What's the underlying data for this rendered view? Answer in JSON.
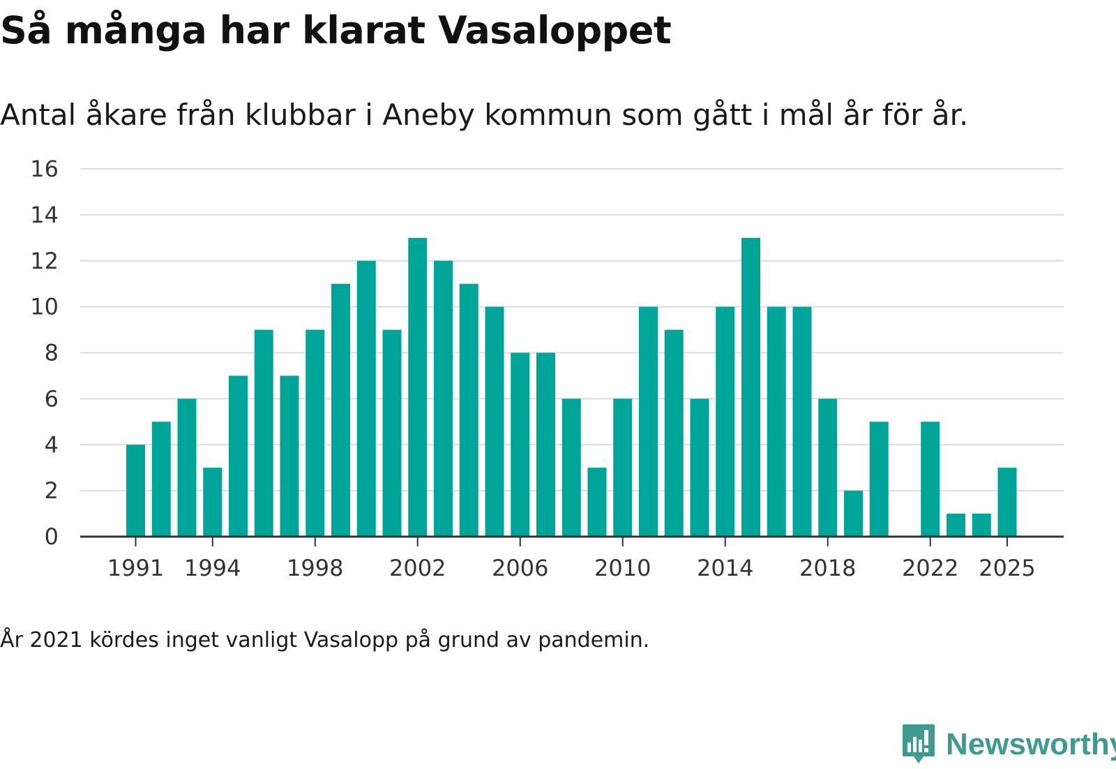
{
  "chart_data": {
    "type": "bar",
    "title": "Så många har klarat Vasaloppet",
    "subtitle": "Antal åkare från klubbar i Aneby kommun som gått i mål år för år.",
    "xlabel": "",
    "ylabel": "",
    "ylim": [
      0,
      16
    ],
    "yticks": [
      0,
      2,
      4,
      6,
      8,
      10,
      12,
      14,
      16
    ],
    "xtick_labels": [
      "1991",
      "1994",
      "1998",
      "2002",
      "2006",
      "2010",
      "2014",
      "2018",
      "2022",
      "2025"
    ],
    "categories": [
      1991,
      1992,
      1993,
      1994,
      1995,
      1996,
      1997,
      1998,
      1999,
      2000,
      2001,
      2002,
      2003,
      2004,
      2005,
      2006,
      2007,
      2008,
      2009,
      2010,
      2011,
      2012,
      2013,
      2014,
      2015,
      2016,
      2017,
      2018,
      2019,
      2020,
      2021,
      2022,
      2023,
      2024,
      2025
    ],
    "values": [
      4,
      5,
      6,
      3,
      7,
      9,
      7,
      9,
      11,
      12,
      9,
      13,
      12,
      11,
      10,
      8,
      8,
      6,
      3,
      6,
      10,
      9,
      6,
      10,
      13,
      10,
      10,
      6,
      2,
      5,
      null,
      5,
      1,
      1,
      3
    ],
    "grid": true,
    "bar_color": "#00a59a"
  },
  "footnote": "År 2021 kördes inget vanligt Vasalopp på grund av pandemin.",
  "brand": {
    "name": "Newsworthy",
    "color": "#3f9a8f",
    "icon": "newsworthy-logo-icon"
  }
}
